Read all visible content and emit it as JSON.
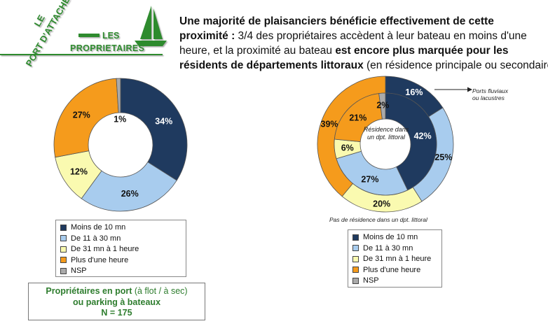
{
  "logo": {
    "text_le": "LE",
    "text_port": "PORT D'ATTACHE",
    "text_les": "LES",
    "text_proprietaires": "PROPRIETAIRES",
    "color": "#2e8b2e"
  },
  "header": {
    "line1": "Une majorité de plaisanciers bénéficie effectivement de cette",
    "line2_bold": "proximité :",
    "line2_reg": " 3/4 des propriétaires accèdent à leur bateau en moins d'une",
    "line3_reg": "heure, et la proximité au bateau ",
    "line3_bold": "est encore plus marquée pour les",
    "line4_bold": "résidents de départements littoraux",
    "line4_reg": " (en résidence principale ou secondaire)"
  },
  "legend_items": [
    {
      "label": "Moins de 10 mn",
      "color": "#1f3a5f"
    },
    {
      "label": "De 11 à 30 mn",
      "color": "#a8ccee"
    },
    {
      "label": "De 31 mn à 1 heure",
      "color": "#fafab0"
    },
    {
      "label": "Plus d'une heure",
      "color": "#f59b1c"
    },
    {
      "label": "NSP",
      "color": "#aaaaaa"
    }
  ],
  "info_box": {
    "line1_bold": "Propriétaires en port",
    "line1_reg": " (à flot / à sec)",
    "line2": "ou parking à bateaux",
    "line3": "N = 175"
  },
  "annotations": {
    "center_label_line1": "Résidence dans",
    "center_label_line2": "un dpt. littoral",
    "outer_label": "Pas de résidence dans un dpt. littoral",
    "ports_line1": "Ports fluviaux",
    "ports_line2": "ou lacustres"
  },
  "chart_data": [
    {
      "type": "pie",
      "categories": [
        "Moins de 10 mn",
        "De 11 à 30 mn",
        "De 31 mn à 1 heure",
        "Plus d'une heure",
        "NSP"
      ],
      "values": [
        34,
        26,
        12,
        27,
        1
      ],
      "labels": [
        "34%",
        "26%",
        "12%",
        "27%",
        "1%"
      ],
      "colors": [
        "#1f3a5f",
        "#a8ccee",
        "#fafab0",
        "#f59b1c",
        "#aaaaaa"
      ]
    },
    {
      "type": "pie",
      "series": [
        {
          "name": "Pas de résidence dans un dpt. littoral",
          "values": [
            16,
            25,
            20,
            39,
            0
          ],
          "labels": [
            "16%",
            "25%",
            "20%",
            "39%",
            ""
          ]
        },
        {
          "name": "Résidence dans un dpt. littoral",
          "values": [
            42,
            27,
            6,
            21,
            2
          ],
          "labels": [
            "42%",
            "27%",
            "6%",
            "21%",
            "2%"
          ]
        }
      ],
      "categories": [
        "Moins de 10 mn",
        "De 11 à 30 mn",
        "De 31 mn à 1 heure",
        "Plus d'une heure",
        "NSP"
      ],
      "colors": [
        "#1f3a5f",
        "#a8ccee",
        "#fafab0",
        "#f59b1c",
        "#aaaaaa"
      ]
    }
  ]
}
